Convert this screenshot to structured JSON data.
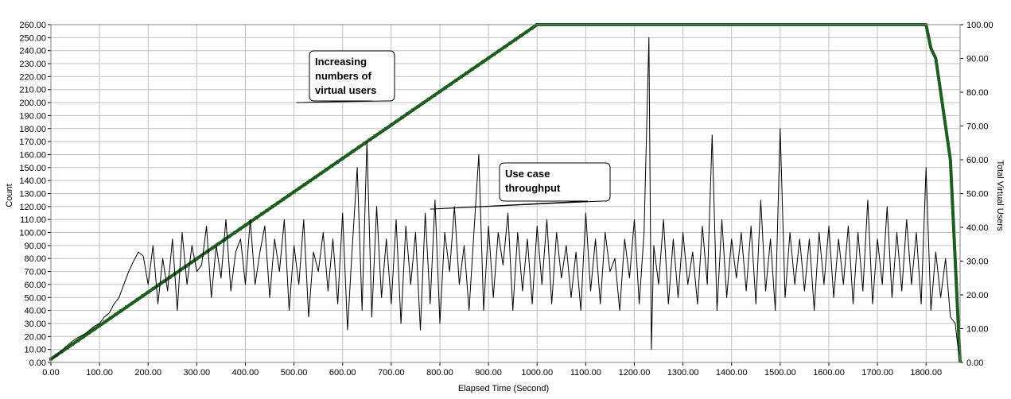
{
  "chart_data": {
    "type": "line",
    "xlabel": "Elapsed Time (Second)",
    "ylabel": "Count",
    "y2label": "Total Virtual Users",
    "xlim": [
      0,
      1870
    ],
    "ylim": [
      0,
      260
    ],
    "y2lim": [
      0,
      100
    ],
    "x_ticks": [
      "0.00",
      "100.00",
      "200.00",
      "300.00",
      "400.00",
      "500.00",
      "600.00",
      "700.00",
      "800.00",
      "900.00",
      "1000.00",
      "1100.00",
      "1200.00",
      "1300.00",
      "1400.00",
      "1500.00",
      "1600.00",
      "1700.00",
      "1800.00"
    ],
    "y_ticks": [
      "0.00",
      "10.00",
      "20.00",
      "30.00",
      "40.00",
      "50.00",
      "60.00",
      "70.00",
      "80.00",
      "90.00",
      "100.00",
      "110.00",
      "120.00",
      "130.00",
      "140.00",
      "150.00",
      "160.00",
      "170.00",
      "180.00",
      "190.00",
      "200.00",
      "210.00",
      "220.00",
      "230.00",
      "240.00",
      "250.00",
      "260.00"
    ],
    "y2_ticks": [
      "0.00",
      "10.00",
      "20.00",
      "30.00",
      "40.00",
      "50.00",
      "60.00",
      "70.00",
      "80.00",
      "90.00",
      "100.00"
    ],
    "grid": true,
    "series": [
      {
        "axis": "right",
        "color": "#1f5c1f",
        "points": [
          [
            0,
            1
          ],
          [
            1000,
            100
          ],
          [
            1800,
            100
          ],
          [
            1810,
            93
          ],
          [
            1820,
            90
          ],
          [
            1830,
            80
          ],
          [
            1840,
            70
          ],
          [
            1850,
            60
          ],
          [
            1870,
            0
          ]
        ]
      },
      {
        "axis": "left",
        "color": "#000000",
        "points": [
          [
            0,
            2
          ],
          [
            10,
            5
          ],
          [
            20,
            8
          ],
          [
            30,
            12
          ],
          [
            40,
            15
          ],
          [
            50,
            18
          ],
          [
            60,
            20
          ],
          [
            70,
            22
          ],
          [
            80,
            25
          ],
          [
            90,
            28
          ],
          [
            100,
            30
          ],
          [
            110,
            35
          ],
          [
            120,
            38
          ],
          [
            130,
            45
          ],
          [
            140,
            50
          ],
          [
            150,
            60
          ],
          [
            160,
            70
          ],
          [
            170,
            78
          ],
          [
            180,
            85
          ],
          [
            190,
            82
          ],
          [
            200,
            60
          ],
          [
            210,
            90
          ],
          [
            220,
            45
          ],
          [
            230,
            80
          ],
          [
            240,
            55
          ],
          [
            250,
            95
          ],
          [
            260,
            40
          ],
          [
            270,
            100
          ],
          [
            280,
            60
          ],
          [
            290,
            90
          ],
          [
            300,
            70
          ],
          [
            310,
            75
          ],
          [
            320,
            105
          ],
          [
            330,
            50
          ],
          [
            340,
            90
          ],
          [
            350,
            65
          ],
          [
            360,
            110
          ],
          [
            370,
            55
          ],
          [
            380,
            85
          ],
          [
            390,
            95
          ],
          [
            400,
            60
          ],
          [
            410,
            110
          ],
          [
            420,
            60
          ],
          [
            430,
            85
          ],
          [
            440,
            105
          ],
          [
            450,
            50
          ],
          [
            460,
            95
          ],
          [
            470,
            70
          ],
          [
            480,
            110
          ],
          [
            490,
            40
          ],
          [
            500,
            90
          ],
          [
            510,
            60
          ],
          [
            520,
            110
          ],
          [
            530,
            35
          ],
          [
            540,
            85
          ],
          [
            550,
            70
          ],
          [
            560,
            100
          ],
          [
            570,
            55
          ],
          [
            580,
            95
          ],
          [
            590,
            45
          ],
          [
            600,
            115
          ],
          [
            610,
            25
          ],
          [
            620,
            90
          ],
          [
            630,
            150
          ],
          [
            640,
            40
          ],
          [
            650,
            170
          ],
          [
            660,
            35
          ],
          [
            670,
            120
          ],
          [
            680,
            50
          ],
          [
            690,
            95
          ],
          [
            700,
            45
          ],
          [
            710,
            110
          ],
          [
            720,
            30
          ],
          [
            730,
            105
          ],
          [
            740,
            60
          ],
          [
            750,
            100
          ],
          [
            760,
            25
          ],
          [
            770,
            115
          ],
          [
            780,
            45
          ],
          [
            790,
            125
          ],
          [
            800,
            30
          ],
          [
            810,
            100
          ],
          [
            820,
            70
          ],
          [
            830,
            120
          ],
          [
            840,
            60
          ],
          [
            850,
            90
          ],
          [
            860,
            40
          ],
          [
            870,
            100
          ],
          [
            880,
            160
          ],
          [
            890,
            40
          ],
          [
            900,
            105
          ],
          [
            910,
            50
          ],
          [
            920,
            100
          ],
          [
            930,
            75
          ],
          [
            940,
            115
          ],
          [
            950,
            40
          ],
          [
            960,
            100
          ],
          [
            970,
            55
          ],
          [
            980,
            95
          ],
          [
            990,
            45
          ],
          [
            1000,
            105
          ],
          [
            1010,
            60
          ],
          [
            1020,
            110
          ],
          [
            1030,
            45
          ],
          [
            1040,
            100
          ],
          [
            1050,
            65
          ],
          [
            1060,
            90
          ],
          [
            1070,
            50
          ],
          [
            1080,
            85
          ],
          [
            1090,
            40
          ],
          [
            1100,
            115
          ],
          [
            1110,
            55
          ],
          [
            1120,
            95
          ],
          [
            1130,
            45
          ],
          [
            1140,
            100
          ],
          [
            1150,
            70
          ],
          [
            1160,
            80
          ],
          [
            1170,
            40
          ],
          [
            1180,
            95
          ],
          [
            1190,
            65
          ],
          [
            1200,
            110
          ],
          [
            1210,
            45
          ],
          [
            1220,
            100
          ],
          [
            1230,
            250
          ],
          [
            1235,
            10
          ],
          [
            1240,
            90
          ],
          [
            1250,
            60
          ],
          [
            1260,
            110
          ],
          [
            1270,
            45
          ],
          [
            1280,
            95
          ],
          [
            1290,
            50
          ],
          [
            1300,
            100
          ],
          [
            1310,
            60
          ],
          [
            1320,
            85
          ],
          [
            1330,
            45
          ],
          [
            1340,
            105
          ],
          [
            1350,
            60
          ],
          [
            1360,
            175
          ],
          [
            1370,
            40
          ],
          [
            1380,
            110
          ],
          [
            1390,
            50
          ],
          [
            1400,
            95
          ],
          [
            1410,
            65
          ],
          [
            1420,
            100
          ],
          [
            1430,
            55
          ],
          [
            1440,
            105
          ],
          [
            1450,
            45
          ],
          [
            1460,
            125
          ],
          [
            1470,
            55
          ],
          [
            1480,
            95
          ],
          [
            1490,
            40
          ],
          [
            1500,
            180
          ],
          [
            1510,
            50
          ],
          [
            1520,
            100
          ],
          [
            1530,
            60
          ],
          [
            1540,
            95
          ],
          [
            1550,
            55
          ],
          [
            1560,
            95
          ],
          [
            1570,
            40
          ],
          [
            1580,
            100
          ],
          [
            1590,
            60
          ],
          [
            1600,
            105
          ],
          [
            1610,
            50
          ],
          [
            1620,
            95
          ],
          [
            1630,
            60
          ],
          [
            1640,
            105
          ],
          [
            1650,
            45
          ],
          [
            1660,
            100
          ],
          [
            1670,
            55
          ],
          [
            1680,
            125
          ],
          [
            1690,
            45
          ],
          [
            1700,
            95
          ],
          [
            1710,
            60
          ],
          [
            1720,
            120
          ],
          [
            1730,
            50
          ],
          [
            1740,
            100
          ],
          [
            1750,
            55
          ],
          [
            1760,
            110
          ],
          [
            1770,
            60
          ],
          [
            1780,
            100
          ],
          [
            1790,
            45
          ],
          [
            1800,
            150
          ],
          [
            1810,
            40
          ],
          [
            1820,
            85
          ],
          [
            1830,
            50
          ],
          [
            1840,
            80
          ],
          [
            1850,
            35
          ],
          [
            1860,
            30
          ],
          [
            1866,
            10
          ],
          [
            1870,
            5
          ]
        ]
      }
    ],
    "annotations": [
      {
        "text": [
          "Increasing",
          "numbers of",
          "virtual users"
        ],
        "tail_x": 505,
        "tail_y": 200
      },
      {
        "text": [
          "Use case",
          "throughput"
        ],
        "tail_x": 780,
        "tail_y": 118
      }
    ]
  }
}
